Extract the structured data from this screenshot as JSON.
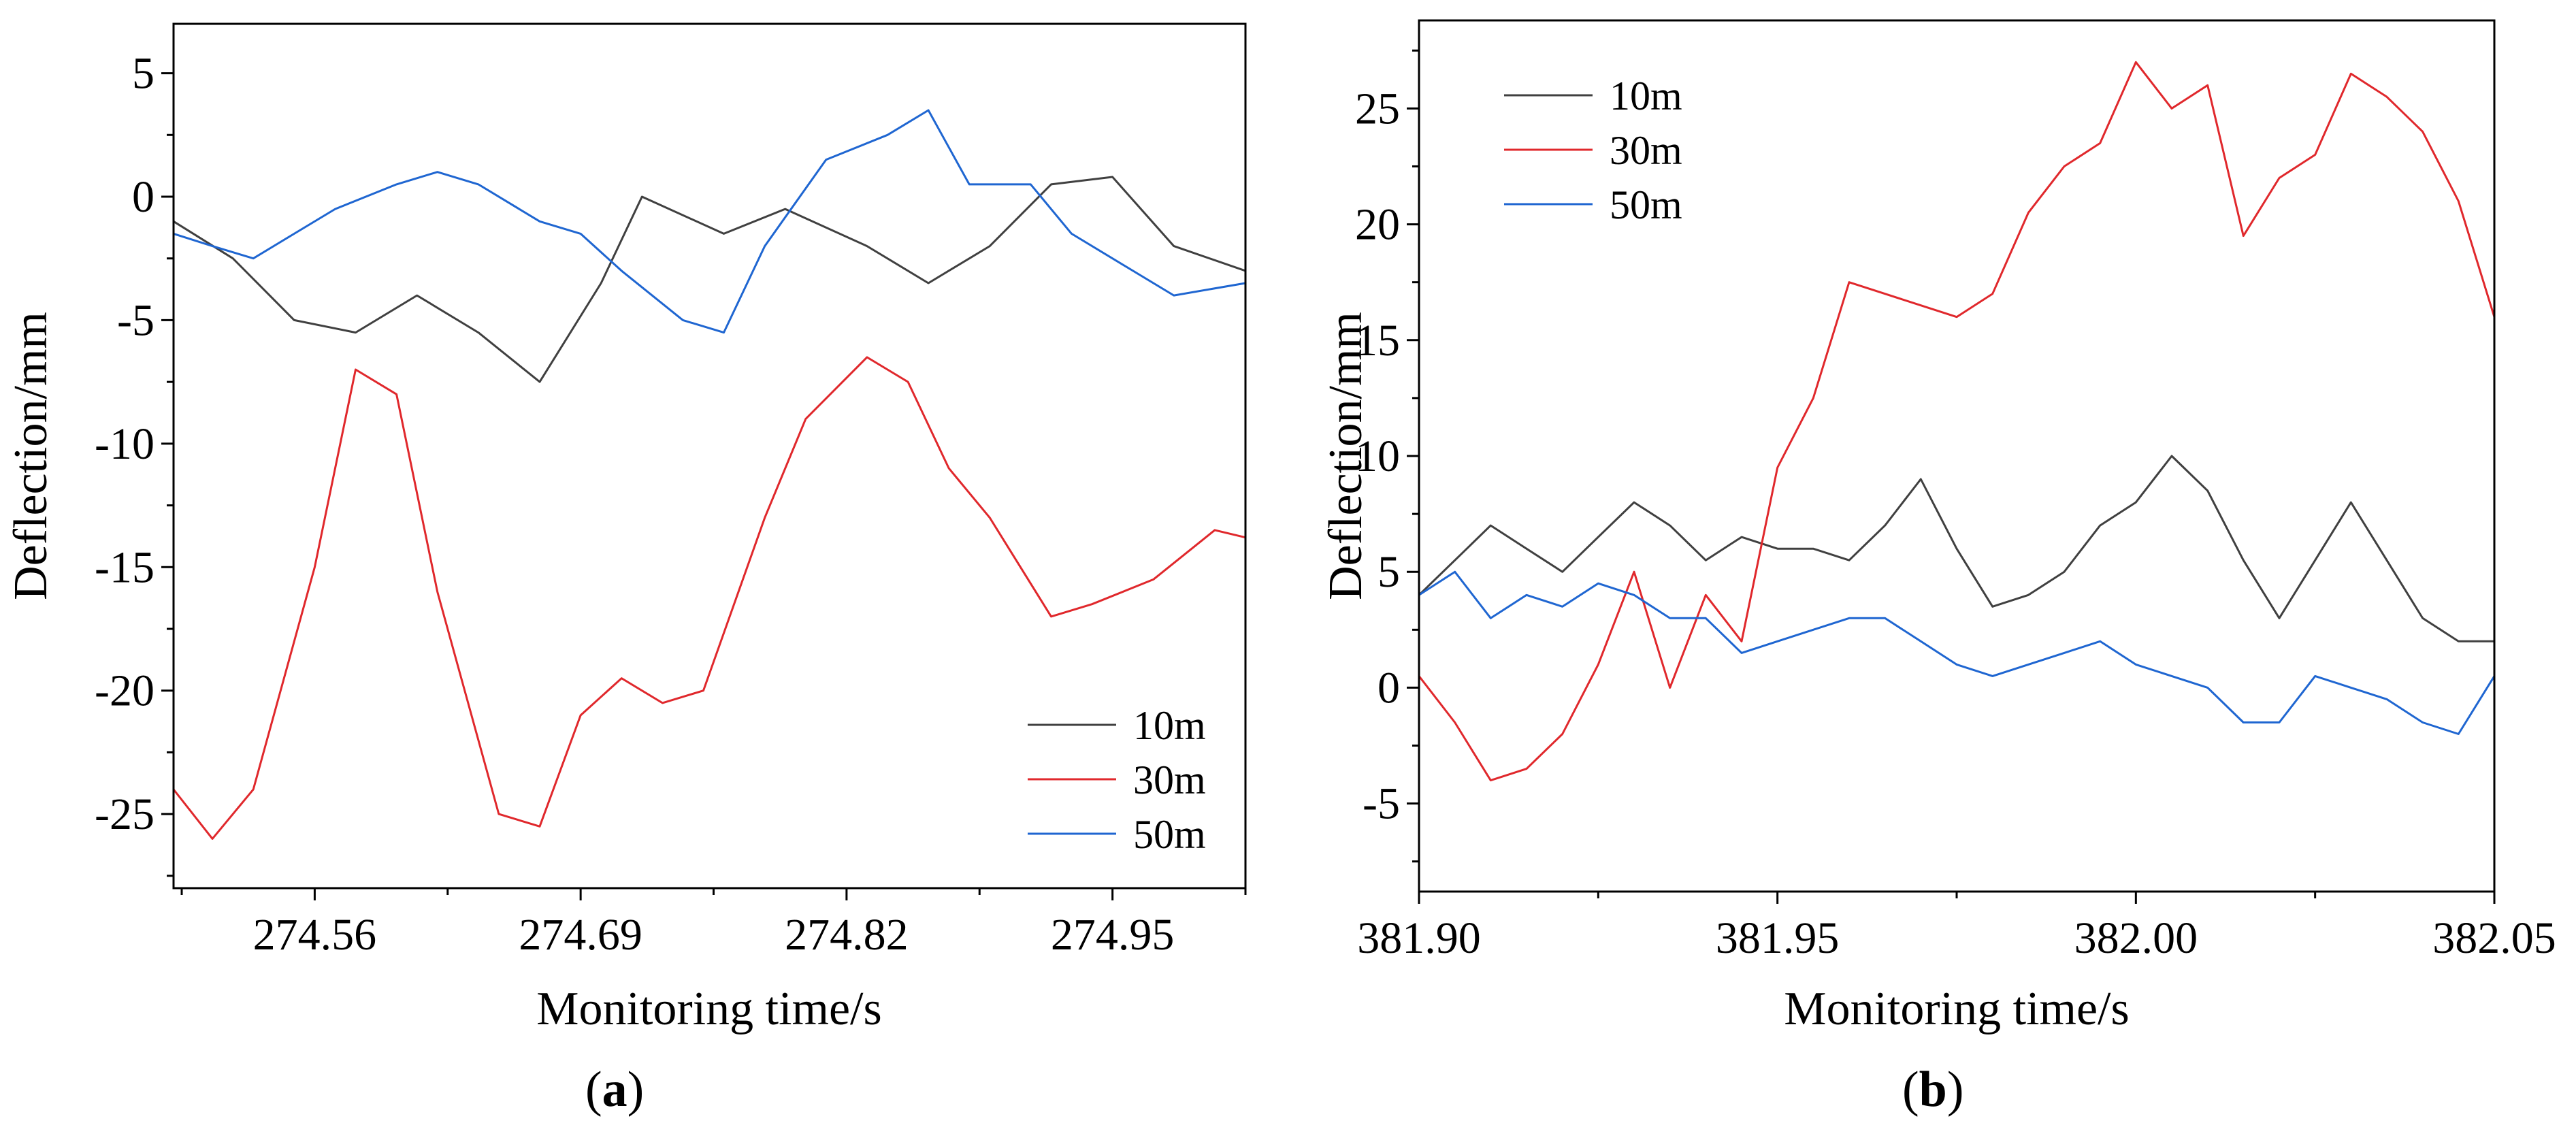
{
  "chart_data": [
    {
      "type": "line",
      "panel_label_letter": "a",
      "xlabel": "Monitoring time/s",
      "ylabel": "Deflection/mm",
      "xlim": [
        274.491,
        275.015
      ],
      "ylim": [
        -28,
        7
      ],
      "xticks": [
        274.56,
        274.69,
        274.82,
        274.95
      ],
      "xtick_labels": [
        "274.56",
        "274.69",
        "274.82",
        "274.95"
      ],
      "yticks": [
        5,
        0,
        -5,
        -10,
        -15,
        -20,
        -25
      ],
      "ytick_labels": [
        "5",
        "0",
        "-5",
        "-10",
        "-15",
        "-20",
        "-25"
      ],
      "legend_position": "bottom-right",
      "series": [
        {
          "name": "10m",
          "color": "#404040",
          "x": [
            274.491,
            274.52,
            274.55,
            274.58,
            274.61,
            274.64,
            274.67,
            274.7,
            274.72,
            274.76,
            274.79,
            274.83,
            274.86,
            274.89,
            274.92,
            274.95,
            274.98,
            275.015
          ],
          "y": [
            -1.0,
            -2.5,
            -5.0,
            -5.5,
            -4.0,
            -5.5,
            -7.5,
            -3.5,
            0.0,
            -1.5,
            -0.5,
            -2.0,
            -3.5,
            -2.0,
            0.5,
            0.8,
            -2.0,
            -3.0
          ]
        },
        {
          "name": "30m",
          "color": "#e0282c",
          "x": [
            274.491,
            274.51,
            274.53,
            274.56,
            274.58,
            274.6,
            274.62,
            274.65,
            274.67,
            274.69,
            274.71,
            274.73,
            274.75,
            274.78,
            274.8,
            274.83,
            274.85,
            274.87,
            274.89,
            274.92,
            274.94,
            274.97,
            275.0,
            275.015
          ],
          "y": [
            -24.0,
            -26.0,
            -24.0,
            -15.0,
            -7.0,
            -8.0,
            -16.0,
            -25.0,
            -25.5,
            -21.0,
            -19.5,
            -20.5,
            -20.0,
            -13.0,
            -9.0,
            -6.5,
            -7.5,
            -11.0,
            -13.0,
            -17.0,
            -16.5,
            -15.5,
            -13.5,
            -13.8
          ]
        },
        {
          "name": "50m",
          "color": "#1f66d1",
          "x": [
            274.491,
            274.51,
            274.53,
            274.55,
            274.57,
            274.6,
            274.62,
            274.64,
            274.67,
            274.69,
            274.71,
            274.74,
            274.76,
            274.78,
            274.81,
            274.84,
            274.86,
            274.88,
            274.91,
            274.93,
            274.96,
            274.98,
            275.015
          ],
          "y": [
            -1.5,
            -2.0,
            -2.5,
            -1.5,
            -0.5,
            0.5,
            1.0,
            0.5,
            -1.0,
            -1.5,
            -3.0,
            -5.0,
            -5.5,
            -2.0,
            1.5,
            2.5,
            3.5,
            0.5,
            0.5,
            -1.5,
            -3.0,
            -4.0,
            -3.5
          ]
        }
      ]
    },
    {
      "type": "line",
      "panel_label_letter": "b",
      "xlabel": "Monitoring time/s",
      "ylabel": "Deflection/mm",
      "xlim": [
        381.9,
        382.05
      ],
      "ylim": [
        -8.8,
        28.8
      ],
      "xticks": [
        381.9,
        381.95,
        382.0,
        382.05
      ],
      "xtick_labels": [
        "381.90",
        "381.95",
        "382.00",
        "382.05"
      ],
      "yticks": [
        25,
        20,
        15,
        10,
        5,
        0,
        -5
      ],
      "ytick_labels": [
        "25",
        "20",
        "15",
        "10",
        "5",
        "0",
        "-5"
      ],
      "legend_position": "top-left",
      "series": [
        {
          "name": "10m",
          "color": "#404040",
          "x": [
            381.9,
            381.905,
            381.91,
            381.915,
            381.92,
            381.925,
            381.93,
            381.935,
            381.94,
            381.945,
            381.95,
            381.955,
            381.96,
            381.965,
            381.97,
            381.975,
            381.98,
            381.985,
            381.99,
            381.995,
            382.0,
            382.005,
            382.01,
            382.015,
            382.02,
            382.025,
            382.03,
            382.035,
            382.04,
            382.045,
            382.05
          ],
          "y": [
            4.0,
            5.5,
            7.0,
            6.0,
            5.0,
            6.5,
            8.0,
            7.0,
            5.5,
            6.5,
            6.0,
            6.0,
            5.5,
            7.0,
            9.0,
            6.0,
            3.5,
            4.0,
            5.0,
            7.0,
            8.0,
            10.0,
            8.5,
            5.5,
            3.0,
            5.5,
            8.0,
            5.5,
            3.0,
            2.0,
            2.0
          ]
        },
        {
          "name": "30m",
          "color": "#e0282c",
          "x": [
            381.9,
            381.905,
            381.91,
            381.915,
            381.92,
            381.925,
            381.93,
            381.935,
            381.94,
            381.945,
            381.95,
            381.955,
            381.96,
            381.965,
            381.97,
            381.975,
            381.98,
            381.985,
            381.99,
            381.995,
            382.0,
            382.005,
            382.01,
            382.015,
            382.02,
            382.025,
            382.03,
            382.035,
            382.04,
            382.045,
            382.05
          ],
          "y": [
            0.5,
            -1.5,
            -4.0,
            -3.5,
            -2.0,
            1.0,
            5.0,
            0.0,
            4.0,
            2.0,
            9.5,
            12.5,
            17.5,
            17.0,
            16.5,
            16.0,
            17.0,
            20.5,
            22.5,
            23.5,
            27.0,
            25.0,
            26.0,
            19.5,
            22.0,
            23.0,
            26.5,
            25.5,
            24.0,
            21.0,
            16.0
          ]
        },
        {
          "name": "50m",
          "color": "#1f66d1",
          "x": [
            381.9,
            381.905,
            381.91,
            381.915,
            381.92,
            381.925,
            381.93,
            381.935,
            381.94,
            381.945,
            381.95,
            381.955,
            381.96,
            381.965,
            381.97,
            381.975,
            381.98,
            381.985,
            381.99,
            381.995,
            382.0,
            382.005,
            382.01,
            382.015,
            382.02,
            382.025,
            382.03,
            382.035,
            382.04,
            382.045,
            382.05
          ],
          "y": [
            4.0,
            5.0,
            3.0,
            4.0,
            3.5,
            4.5,
            4.0,
            3.0,
            3.0,
            1.5,
            2.0,
            2.5,
            3.0,
            3.0,
            2.0,
            1.0,
            0.5,
            1.0,
            1.5,
            2.0,
            1.0,
            0.5,
            0.0,
            -1.5,
            -1.5,
            0.5,
            0.0,
            -0.5,
            -1.5,
            -2.0,
            0.5
          ]
        }
      ]
    }
  ]
}
